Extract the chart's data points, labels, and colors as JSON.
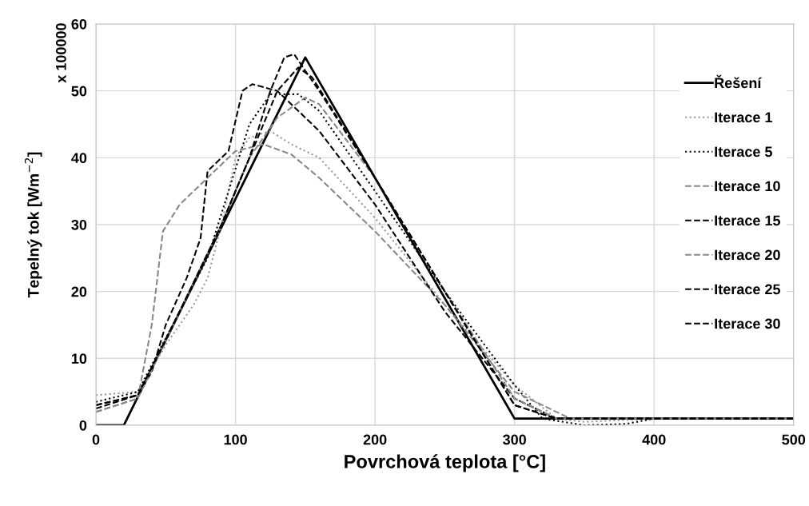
{
  "chart_data": {
    "type": "line",
    "xlabel": "Povrchová teplota [°C]",
    "ylabel": "Tepelný tok [Wm$^{−2}$]",
    "annotations": [
      "x 100000"
    ],
    "xlim": [
      0,
      500
    ],
    "xticks": [
      0,
      100,
      200,
      300,
      400,
      500
    ],
    "ylim": [
      0,
      60
    ],
    "yticks": [
      0,
      10,
      20,
      30,
      40,
      50,
      60
    ],
    "grid": true,
    "legend": "right",
    "series": [
      {
        "name": "Řešení",
        "color": "#000000",
        "line_style": "solid",
        "x": [
          0,
          20,
          150,
          300,
          500
        ],
        "values": [
          0,
          0,
          55,
          1,
          1
        ]
      },
      {
        "name": "Iterace 1",
        "color": "#999999",
        "line_style": "dotted",
        "x": [
          0,
          30,
          50,
          70,
          80,
          90,
          100,
          110,
          125,
          140,
          160,
          200,
          250,
          300,
          330,
          350,
          400,
          500
        ],
        "values": [
          4.5,
          5,
          12,
          18,
          22,
          30,
          40,
          43,
          44,
          42,
          40,
          31,
          18,
          6,
          1,
          0.5,
          1,
          1
        ]
      },
      {
        "name": "Iterace 5",
        "color": "#000000",
        "line_style": "dotted",
        "x": [
          0,
          30,
          60,
          80,
          95,
          110,
          125,
          145,
          160,
          200,
          250,
          300,
          320,
          350,
          380,
          400,
          500
        ],
        "values": [
          3.5,
          5,
          17,
          25,
          35,
          45,
          49.5,
          49.5,
          47,
          35,
          20,
          6,
          1,
          0,
          0.2,
          1,
          1
        ]
      },
      {
        "name": "Iterace 10",
        "color": "#888888",
        "line_style": "dashed",
        "x": [
          0,
          30,
          40,
          48,
          60,
          80,
          100,
          120,
          140,
          160,
          200,
          250,
          300,
          340,
          500
        ],
        "values": [
          2,
          4,
          15,
          29,
          33,
          37,
          41,
          42,
          40.5,
          37,
          29,
          18,
          5,
          1,
          1
        ]
      },
      {
        "name": "Iterace 15",
        "color": "#000000",
        "line_style": "dashed",
        "x": [
          0,
          30,
          40,
          50,
          65,
          75,
          80,
          95,
          105,
          112,
          130,
          145,
          160,
          200,
          250,
          300,
          330,
          500
        ],
        "values": [
          3,
          4.5,
          8,
          15,
          22,
          28,
          38,
          41,
          50,
          51,
          50,
          47,
          44,
          33,
          17,
          4,
          1,
          1
        ]
      },
      {
        "name": "Iterace 20",
        "color": "#888888",
        "line_style": "dashed",
        "x": [
          0,
          30,
          60,
          90,
          110,
          130,
          150,
          160,
          200,
          250,
          300,
          330,
          500
        ],
        "values": [
          2,
          4,
          17,
          30,
          40,
          46,
          49,
          48,
          37,
          20,
          4,
          1,
          1
        ]
      },
      {
        "name": "Iterace 25",
        "color": "#000000",
        "line_style": "dashed",
        "x": [
          0,
          30,
          60,
          90,
          110,
          130,
          145,
          155,
          200,
          250,
          300,
          330,
          500
        ],
        "values": [
          3,
          4.5,
          17,
          30,
          40,
          50,
          53.5,
          52,
          37,
          20,
          3,
          1,
          1
        ]
      },
      {
        "name": "Iterace 30",
        "color": "#000000",
        "line_style": "dashed",
        "x": [
          0,
          30,
          60,
          90,
          110,
          125,
          135,
          142,
          150,
          160,
          200,
          250,
          300,
          330,
          500
        ],
        "values": [
          2.5,
          4.5,
          17,
          30,
          40,
          50,
          55,
          55.5,
          53,
          50,
          37,
          20,
          3,
          1,
          1
        ]
      }
    ]
  }
}
